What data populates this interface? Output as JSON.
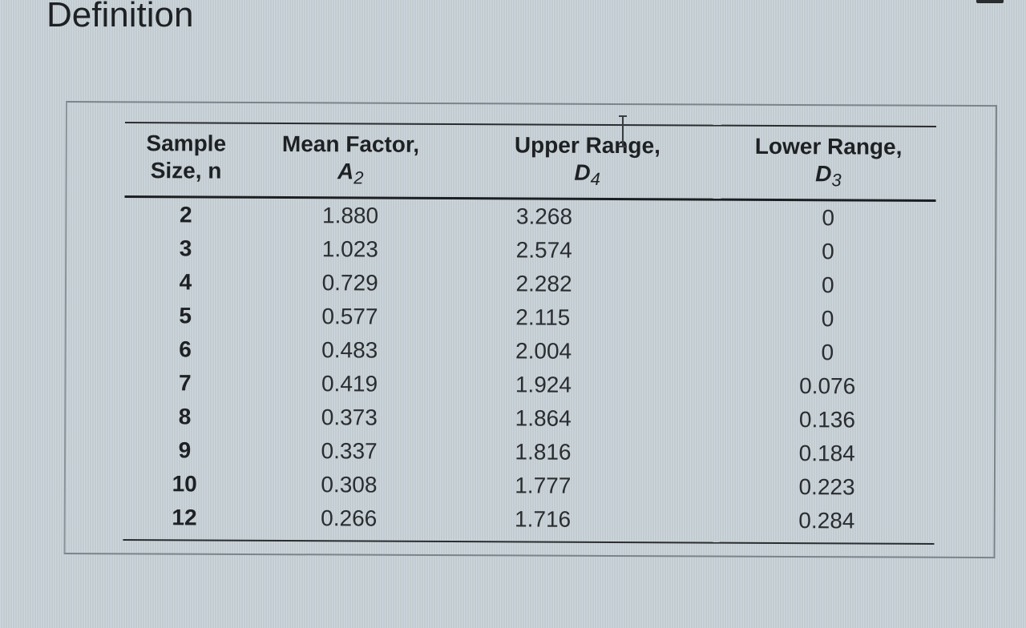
{
  "page": {
    "title": "Definition"
  },
  "table": {
    "headers": {
      "n": {
        "line1": "Sample",
        "line2": "Size, n"
      },
      "a2": {
        "line1": "Mean Factor,",
        "symbol": "A",
        "subscript": "2"
      },
      "d4": {
        "line1": "Upper Range,",
        "symbol": "D",
        "subscript": "4"
      },
      "d3": {
        "line1": "Lower Range,",
        "symbol": "D",
        "subscript": "3"
      }
    },
    "rows": [
      {
        "n": "2",
        "a2": "1.880",
        "d4": "3.268",
        "d3": "0"
      },
      {
        "n": "3",
        "a2": "1.023",
        "d4": "2.574",
        "d3": "0"
      },
      {
        "n": "4",
        "a2": "0.729",
        "d4": "2.282",
        "d3": "0"
      },
      {
        "n": "5",
        "a2": "0.577",
        "d4": "2.115",
        "d3": "0"
      },
      {
        "n": "6",
        "a2": "0.483",
        "d4": "2.004",
        "d3": "0"
      },
      {
        "n": "7",
        "a2": "0.419",
        "d4": "1.924",
        "d3": "0.076"
      },
      {
        "n": "8",
        "a2": "0.373",
        "d4": "1.864",
        "d3": "0.136"
      },
      {
        "n": "9",
        "a2": "0.337",
        "d4": "1.816",
        "d3": "0.184"
      },
      {
        "n": "10",
        "a2": "0.308",
        "d4": "1.777",
        "d3": "0.223"
      },
      {
        "n": "12",
        "a2": "0.266",
        "d4": "1.716",
        "d3": "0.284"
      }
    ]
  },
  "chart_data": {
    "type": "table",
    "title": "Definition",
    "columns": [
      "Sample Size, n",
      "Mean Factor, A2",
      "Upper Range, D4",
      "Lower Range, D3"
    ],
    "rows": [
      [
        2,
        1.88,
        3.268,
        0
      ],
      [
        3,
        1.023,
        2.574,
        0
      ],
      [
        4,
        0.729,
        2.282,
        0
      ],
      [
        5,
        0.577,
        2.115,
        0
      ],
      [
        6,
        0.483,
        2.004,
        0
      ],
      [
        7,
        0.419,
        1.924,
        0.076
      ],
      [
        8,
        0.373,
        1.864,
        0.136
      ],
      [
        9,
        0.337,
        1.816,
        0.184
      ],
      [
        10,
        0.308,
        1.777,
        0.223
      ],
      [
        12,
        0.266,
        1.716,
        0.284
      ]
    ]
  }
}
